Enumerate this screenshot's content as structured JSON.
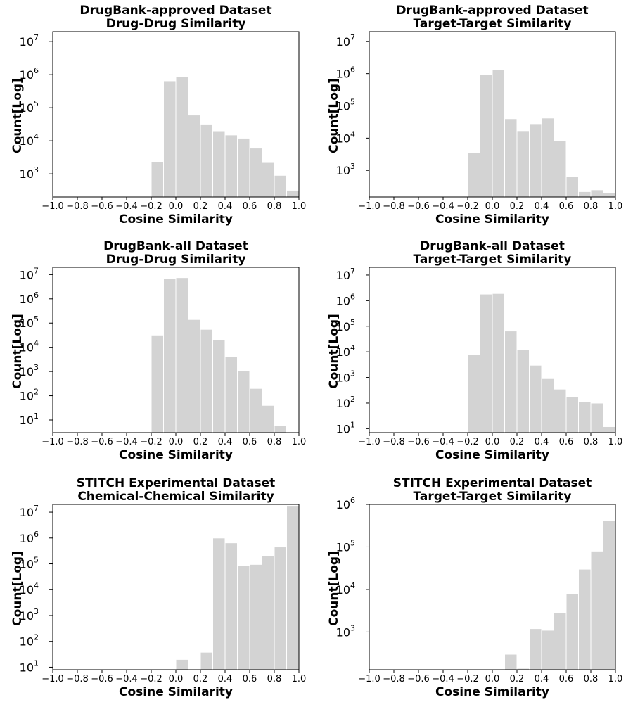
{
  "chart_data": [
    {
      "type": "bar",
      "title": "DrugBank-approved Dataset",
      "subtitle": "Drug-Drug Similarity",
      "xlabel": "Cosine Similarity",
      "ylabel": "Count[Log]",
      "y_scale": "log",
      "xlim": [
        -1.0,
        1.0
      ],
      "ylim": [
        200,
        20000000
      ],
      "x_ticks": [
        "−1.0",
        "−0.8",
        "−0.6",
        "−0.4",
        "−0.2",
        "0.0",
        "0.2",
        "0.4",
        "0.6",
        "0.8",
        "1.0"
      ],
      "y_ticks": [
        {
          "base": "10",
          "exp": "3",
          "value": 1000
        },
        {
          "base": "10",
          "exp": "4",
          "value": 10000
        },
        {
          "base": "10",
          "exp": "5",
          "value": 100000
        },
        {
          "base": "10",
          "exp": "6",
          "value": 1000000
        },
        {
          "base": "10",
          "exp": "7",
          "value": 10000000
        }
      ],
      "bin_edges": [
        -0.2,
        -0.1,
        0.0,
        0.1,
        0.2,
        0.3,
        0.4,
        0.5,
        0.6,
        0.7,
        0.8,
        0.9,
        1.0
      ],
      "values": [
        2300,
        650000,
        850000,
        60000,
        32000,
        20000,
        15000,
        12000,
        6000,
        2200,
        900,
        320
      ],
      "grid": false,
      "color": "#d3d3d3"
    },
    {
      "type": "bar",
      "title": "DrugBank-approved Dataset",
      "subtitle": "Target-Target Similarity",
      "xlabel": "Cosine Similarity",
      "ylabel": "Count[Log]",
      "y_scale": "log",
      "xlim": [
        -1.0,
        1.0
      ],
      "ylim": [
        150,
        20000000
      ],
      "x_ticks": [
        "−1.0",
        "−0.8",
        "−0.6",
        "−0.4",
        "−0.2",
        "0.0",
        "0.2",
        "0.4",
        "0.6",
        "0.8",
        "1.0"
      ],
      "y_ticks": [
        {
          "base": "10",
          "exp": "3",
          "value": 1000
        },
        {
          "base": "10",
          "exp": "4",
          "value": 10000
        },
        {
          "base": "10",
          "exp": "5",
          "value": 100000
        },
        {
          "base": "10",
          "exp": "6",
          "value": 1000000
        },
        {
          "base": "10",
          "exp": "7",
          "value": 10000000
        }
      ],
      "bin_edges": [
        -0.2,
        -0.1,
        0.0,
        0.1,
        0.2,
        0.3,
        0.4,
        0.5,
        0.6,
        0.7,
        0.8,
        0.9,
        1.0
      ],
      "values": [
        3500,
        950000,
        1350000,
        40000,
        17000,
        28000,
        42000,
        8500,
        650,
        220,
        250,
        200
      ],
      "grid": false,
      "color": "#d3d3d3"
    },
    {
      "type": "bar",
      "title": "DrugBank-all Dataset",
      "subtitle": "Drug-Drug Similarity",
      "xlabel": "Cosine Similarity",
      "ylabel": "Count[Log]",
      "y_scale": "log",
      "xlim": [
        -1.0,
        1.0
      ],
      "ylim": [
        3,
        20000000
      ],
      "x_ticks": [
        "−1.0",
        "−0.8",
        "−0.6",
        "−0.4",
        "−0.2",
        "0.0",
        "0.2",
        "0.4",
        "0.6",
        "0.8",
        "1.0"
      ],
      "y_ticks": [
        {
          "base": "10",
          "exp": "1",
          "value": 10
        },
        {
          "base": "10",
          "exp": "2",
          "value": 100
        },
        {
          "base": "10",
          "exp": "3",
          "value": 1000
        },
        {
          "base": "10",
          "exp": "4",
          "value": 10000
        },
        {
          "base": "10",
          "exp": "5",
          "value": 100000
        },
        {
          "base": "10",
          "exp": "6",
          "value": 1000000
        },
        {
          "base": "10",
          "exp": "7",
          "value": 10000000
        }
      ],
      "bin_edges": [
        -0.2,
        -0.1,
        0.0,
        0.1,
        0.2,
        0.3,
        0.4,
        0.5,
        0.6,
        0.7,
        0.8,
        0.9
      ],
      "values": [
        32000,
        7000000,
        7500000,
        140000,
        55000,
        20000,
        4000,
        1100,
        200,
        40,
        6
      ],
      "grid": false,
      "color": "#d3d3d3"
    },
    {
      "type": "bar",
      "title": "DrugBank-all Dataset",
      "subtitle": "Target-Target Similarity",
      "xlabel": "Cosine Similarity",
      "ylabel": "Count[Log]",
      "y_scale": "log",
      "xlim": [
        -1.0,
        1.0
      ],
      "ylim": [
        7,
        20000000
      ],
      "x_ticks": [
        "−1.0",
        "−0.8",
        "−0.6",
        "−0.4",
        "−0.2",
        "0.0",
        "0.2",
        "0.4",
        "0.6",
        "0.8",
        "1.0"
      ],
      "y_ticks": [
        {
          "base": "10",
          "exp": "1",
          "value": 10
        },
        {
          "base": "10",
          "exp": "2",
          "value": 100
        },
        {
          "base": "10",
          "exp": "3",
          "value": 1000
        },
        {
          "base": "10",
          "exp": "4",
          "value": 10000
        },
        {
          "base": "10",
          "exp": "5",
          "value": 100000
        },
        {
          "base": "10",
          "exp": "6",
          "value": 1000000
        },
        {
          "base": "10",
          "exp": "7",
          "value": 10000000
        }
      ],
      "bin_edges": [
        -0.2,
        -0.1,
        0.0,
        0.1,
        0.2,
        0.3,
        0.4,
        0.5,
        0.6,
        0.7,
        0.8,
        0.9,
        1.0
      ],
      "values": [
        8000,
        1800000,
        1900000,
        65000,
        12000,
        3000,
        900,
        350,
        180,
        110,
        100,
        12
      ],
      "grid": false,
      "color": "#d3d3d3"
    },
    {
      "type": "bar",
      "title": "STITCH Experimental Dataset",
      "subtitle": "Chemical-Chemical Similarity",
      "xlabel": "Cosine Similarity",
      "ylabel": "Count[Log]",
      "y_scale": "log",
      "xlim": [
        -1.0,
        1.0
      ],
      "ylim": [
        8,
        20000000
      ],
      "x_ticks": [
        "−1.0",
        "−0.8",
        "−0.6",
        "−0.4",
        "−0.2",
        "0.0",
        "0.2",
        "0.4",
        "0.6",
        "0.8",
        "1.0"
      ],
      "y_ticks": [
        {
          "base": "10",
          "exp": "1",
          "value": 10
        },
        {
          "base": "10",
          "exp": "2",
          "value": 100
        },
        {
          "base": "10",
          "exp": "3",
          "value": 1000
        },
        {
          "base": "10",
          "exp": "4",
          "value": 10000
        },
        {
          "base": "10",
          "exp": "5",
          "value": 100000
        },
        {
          "base": "10",
          "exp": "6",
          "value": 1000000
        },
        {
          "base": "10",
          "exp": "7",
          "value": 10000000
        }
      ],
      "bin_edges": [
        0.0,
        0.1,
        0.2,
        0.3,
        0.4,
        0.5,
        0.6,
        0.7,
        0.8,
        0.9,
        1.0
      ],
      "values": [
        20,
        0,
        38,
        1000000,
        650000,
        85000,
        95000,
        200000,
        450000,
        17000000
      ],
      "grid": false,
      "color": "#d3d3d3"
    },
    {
      "type": "bar",
      "title": "STITCH Experimental Dataset",
      "subtitle": "Target-Target Similarity",
      "xlabel": "Cosine Similarity",
      "ylabel": "Count[Log]",
      "y_scale": "log",
      "xlim": [
        -1.0,
        1.0
      ],
      "ylim": [
        130,
        1000000
      ],
      "x_ticks": [
        "−1.0",
        "−0.8",
        "−0.6",
        "−0.4",
        "−0.2",
        "0.0",
        "0.2",
        "0.4",
        "0.6",
        "0.8",
        "1.0"
      ],
      "y_ticks": [
        {
          "base": "10",
          "exp": "3",
          "value": 1000
        },
        {
          "base": "10",
          "exp": "4",
          "value": 10000
        },
        {
          "base": "10",
          "exp": "5",
          "value": 100000
        },
        {
          "base": "10",
          "exp": "6",
          "value": 1000000
        }
      ],
      "bin_edges": [
        0.1,
        0.2,
        0.3,
        0.4,
        0.5,
        0.6,
        0.7,
        0.8,
        0.9,
        1.0
      ],
      "values": [
        300,
        140,
        1200,
        1100,
        2800,
        8000,
        30000,
        80000,
        420000
      ],
      "grid": false,
      "color": "#d3d3d3"
    }
  ]
}
